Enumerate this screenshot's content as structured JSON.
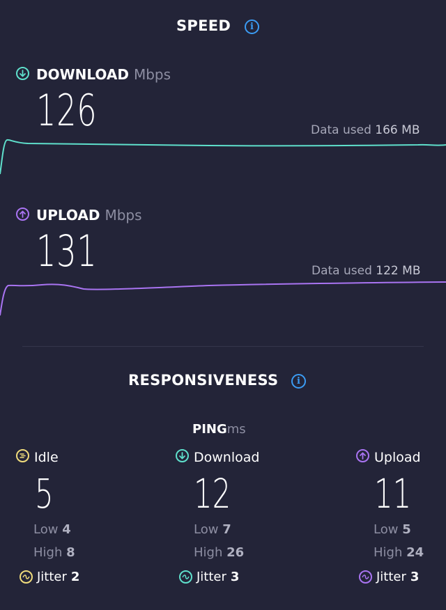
{
  "speed": {
    "title": "SPEED",
    "download": {
      "label": "DOWNLOAD",
      "unit": "Mbps",
      "value": "126",
      "data_used_label": "Data used",
      "data_used_value": "166 MB",
      "color": "#5fe0cc"
    },
    "upload": {
      "label": "UPLOAD",
      "unit": "Mbps",
      "value": "131",
      "data_used_label": "Data used",
      "data_used_value": "122 MB",
      "color": "#a974f2"
    }
  },
  "responsiveness": {
    "title": "RESPONSIVENESS",
    "ping_label": "PING",
    "ping_unit": "ms",
    "idle": {
      "label": "Idle",
      "value": "5",
      "low_label": "Low",
      "low": "4",
      "high_label": "High",
      "high": "8",
      "jitter_label": "Jitter",
      "jitter": "2",
      "color": "#f0dc7c"
    },
    "download": {
      "label": "Download",
      "value": "12",
      "low_label": "Low",
      "low": "7",
      "high_label": "High",
      "high": "26",
      "jitter_label": "Jitter",
      "jitter": "3",
      "color": "#5fe0cc"
    },
    "upload": {
      "label": "Upload",
      "value": "11",
      "low_label": "Low",
      "low": "5",
      "high_label": "High",
      "high": "24",
      "jitter_label": "Jitter",
      "jitter": "3",
      "color": "#a974f2"
    }
  },
  "icons": {
    "info": "info-icon",
    "download": "download-arrow-icon",
    "upload": "upload-arrow-icon",
    "idle": "idle-icon",
    "jitter": "jitter-wave-icon"
  }
}
